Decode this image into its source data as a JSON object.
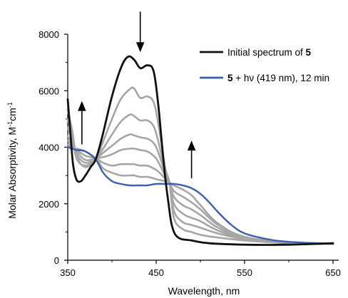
{
  "chart_data": {
    "type": "line",
    "xlabel": "Wavelength, nm",
    "ylabel_main": "Molar Absorptivity, M",
    "ylabel_sup1": "-1",
    "ylabel_mid": "cm",
    "ylabel_sup2": "-1",
    "xlim": [
      350,
      650
    ],
    "ylim": [
      0,
      8000
    ],
    "x_ticks": [
      "350",
      "450",
      "550",
      "650"
    ],
    "x_tick_values": [
      350,
      450,
      550,
      650
    ],
    "y_ticks": [
      "0",
      "2000",
      "4000",
      "6000",
      "8000"
    ],
    "y_tick_values": [
      0,
      2000,
      4000,
      6000,
      8000
    ],
    "grid": false,
    "legend_position": "top-right",
    "legend": [
      {
        "color": "#111111",
        "text_bold": "",
        "text": "Initial spectrum of ",
        "text_bold_after": "5"
      },
      {
        "color": "#3d5fb0",
        "text_bold": "5",
        "text": " + hν (419 nm), 12 min",
        "text_bold_after": ""
      }
    ],
    "colors": {
      "initial": "#111111",
      "final": "#3d5fb0",
      "intermediate": "#a6a6a6"
    },
    "series": [
      {
        "role": "intermediate",
        "x": [
          350,
          355,
          360,
          370,
          382,
          390,
          400,
          410,
          420,
          425,
          432,
          440,
          447,
          452,
          460,
          465,
          470,
          480,
          490,
          500,
          520,
          550,
          600,
          650
        ],
        "y": [
          5300,
          4600,
          3700,
          3300,
          3600,
          4200,
          5000,
          5700,
          6050,
          6080,
          5750,
          5800,
          5600,
          4900,
          3300,
          2750,
          1500,
          1100,
          1000,
          900,
          800,
          700,
          600,
          580
        ]
      },
      {
        "role": "intermediate",
        "x": [
          350,
          355,
          360,
          370,
          382,
          390,
          400,
          410,
          420,
          425,
          432,
          440,
          447,
          452,
          460,
          465,
          470,
          480,
          490,
          500,
          520,
          550,
          600,
          650
        ],
        "y": [
          5000,
          4400,
          3600,
          3350,
          3600,
          3950,
          4450,
          4900,
          5150,
          5100,
          4950,
          4950,
          4750,
          4250,
          3200,
          2750,
          1750,
          1350,
          1250,
          1150,
          950,
          750,
          620,
          580
        ]
      },
      {
        "role": "intermediate",
        "x": [
          350,
          355,
          360,
          370,
          382,
          390,
          400,
          410,
          420,
          425,
          432,
          440,
          447,
          452,
          460,
          465,
          470,
          480,
          490,
          500,
          520,
          550,
          600,
          650
        ],
        "y": [
          4700,
          4250,
          3750,
          3450,
          3600,
          3800,
          4050,
          4300,
          4450,
          4420,
          4350,
          4300,
          4150,
          3850,
          3100,
          2750,
          2000,
          1650,
          1500,
          1380,
          1050,
          780,
          620,
          580
        ]
      },
      {
        "role": "intermediate",
        "x": [
          350,
          355,
          360,
          370,
          382,
          390,
          400,
          410,
          420,
          425,
          432,
          440,
          447,
          452,
          460,
          465,
          470,
          480,
          490,
          500,
          520,
          550,
          600,
          650
        ],
        "y": [
          4400,
          4100,
          3850,
          3550,
          3600,
          3650,
          3750,
          3900,
          3950,
          3950,
          3900,
          3850,
          3700,
          3500,
          3000,
          2750,
          2250,
          1950,
          1800,
          1600,
          1150,
          800,
          630,
          580
        ]
      },
      {
        "role": "intermediate",
        "x": [
          350,
          355,
          360,
          370,
          382,
          390,
          400,
          410,
          420,
          425,
          432,
          440,
          447,
          452,
          460,
          465,
          470,
          480,
          490,
          500,
          520,
          550,
          600,
          650
        ],
        "y": [
          4250,
          4000,
          3900,
          3700,
          3600,
          3450,
          3350,
          3400,
          3400,
          3400,
          3350,
          3350,
          3250,
          3150,
          2900,
          2750,
          2450,
          2250,
          2050,
          1800,
          1250,
          820,
          640,
          580
        ]
      },
      {
        "role": "intermediate",
        "x": [
          350,
          355,
          360,
          370,
          382,
          390,
          400,
          410,
          420,
          425,
          432,
          440,
          447,
          452,
          460,
          465,
          470,
          480,
          490,
          500,
          520,
          550,
          600,
          650
        ],
        "y": [
          4100,
          3950,
          3950,
          3850,
          3600,
          3250,
          3100,
          3000,
          3000,
          3000,
          2950,
          2950,
          2900,
          2850,
          2800,
          2750,
          2650,
          2500,
          2300,
          1950,
          1300,
          830,
          640,
          580
        ]
      },
      {
        "role": "initial",
        "x": [
          350,
          353,
          356,
          360,
          365,
          370,
          376,
          382,
          390,
          400,
          410,
          418,
          425,
          432,
          440,
          447,
          452,
          456,
          460,
          464,
          468,
          475,
          490,
          510,
          550,
          600,
          650
        ],
        "y": [
          5700,
          4500,
          3400,
          2850,
          2800,
          3000,
          3300,
          3600,
          4500,
          5800,
          6800,
          7200,
          7100,
          6800,
          6900,
          6700,
          5600,
          4300,
          3000,
          2000,
          1200,
          800,
          700,
          600,
          550,
          550,
          600
        ]
      },
      {
        "role": "final",
        "x": [
          350,
          355,
          360,
          370,
          382,
          390,
          400,
          410,
          420,
          432,
          440,
          450,
          460,
          465,
          470,
          480,
          490,
          500,
          510,
          520,
          535,
          550,
          575,
          600,
          650
        ],
        "y": [
          4000,
          3950,
          3900,
          3850,
          3550,
          3100,
          2800,
          2700,
          2650,
          2650,
          2650,
          2700,
          2700,
          2700,
          2700,
          2650,
          2550,
          2350,
          2050,
          1700,
          1250,
          950,
          750,
          650,
          580
        ]
      }
    ],
    "annotations": [
      {
        "type": "arrow",
        "direction": "down",
        "x": 432,
        "y_from": 8800,
        "y_to": 7400
      },
      {
        "type": "arrow",
        "direction": "up",
        "x": 366,
        "y_from": 4100,
        "y_to": 5600
      },
      {
        "type": "arrow",
        "direction": "up",
        "x": 490,
        "y_from": 2900,
        "y_to": 4200
      }
    ]
  }
}
